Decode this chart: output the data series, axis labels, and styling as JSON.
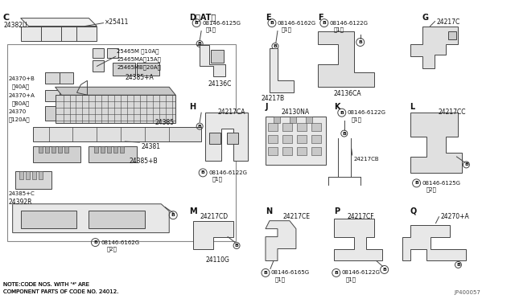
{
  "bg_color": "#ffffff",
  "line_color": "#444444",
  "text_color": "#111111",
  "jp_code": "JP400057",
  "note_line1": "NOTE:CODE NOS. WITH '*' ARE",
  "note_line2": "COMPONENT PARTS OF CODE NO. 24012.",
  "figsize": [
    6.4,
    3.72
  ],
  "dpi": 100
}
